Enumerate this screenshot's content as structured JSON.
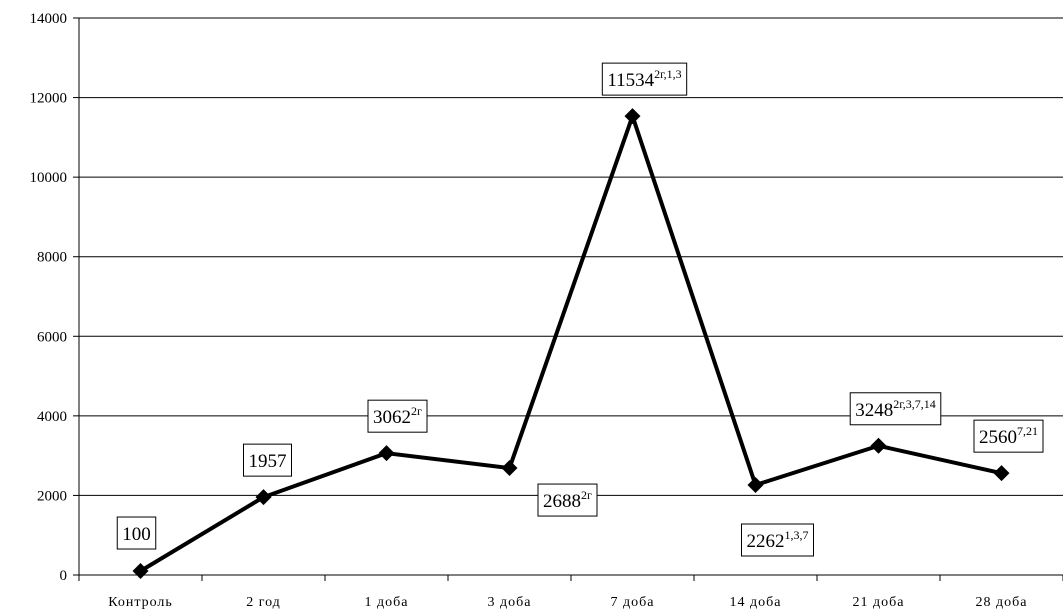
{
  "chart_data": {
    "type": "line",
    "categories": [
      "Контроль",
      "2 год",
      "1 доба",
      "3 доба",
      "7 доба",
      "14 доба",
      "21 доба",
      "28 доба"
    ],
    "values": [
      100,
      1957,
      3062,
      2688,
      11534,
      2262,
      3248,
      2560
    ],
    "data_labels": [
      {
        "value": "100",
        "sup": ""
      },
      {
        "value": "1957",
        "sup": ""
      },
      {
        "value": "3062",
        "sup": "2г"
      },
      {
        "value": "2688",
        "sup": "2г"
      },
      {
        "value": "11534",
        "sup": "2г,1,3"
      },
      {
        "value": "2262",
        "sup": "1,3,7"
      },
      {
        "value": "3248",
        "sup": "2г,3,7,14"
      },
      {
        "value": "2560",
        "sup": "7,21"
      }
    ],
    "y_ticks": [
      "0",
      "2000",
      "4000",
      "6000",
      "8000",
      "10000",
      "12000",
      "14000"
    ],
    "ylim": [
      0,
      14000
    ],
    "grid": true,
    "legend": "none",
    "line_color": "#000000",
    "marker": "diamond"
  }
}
